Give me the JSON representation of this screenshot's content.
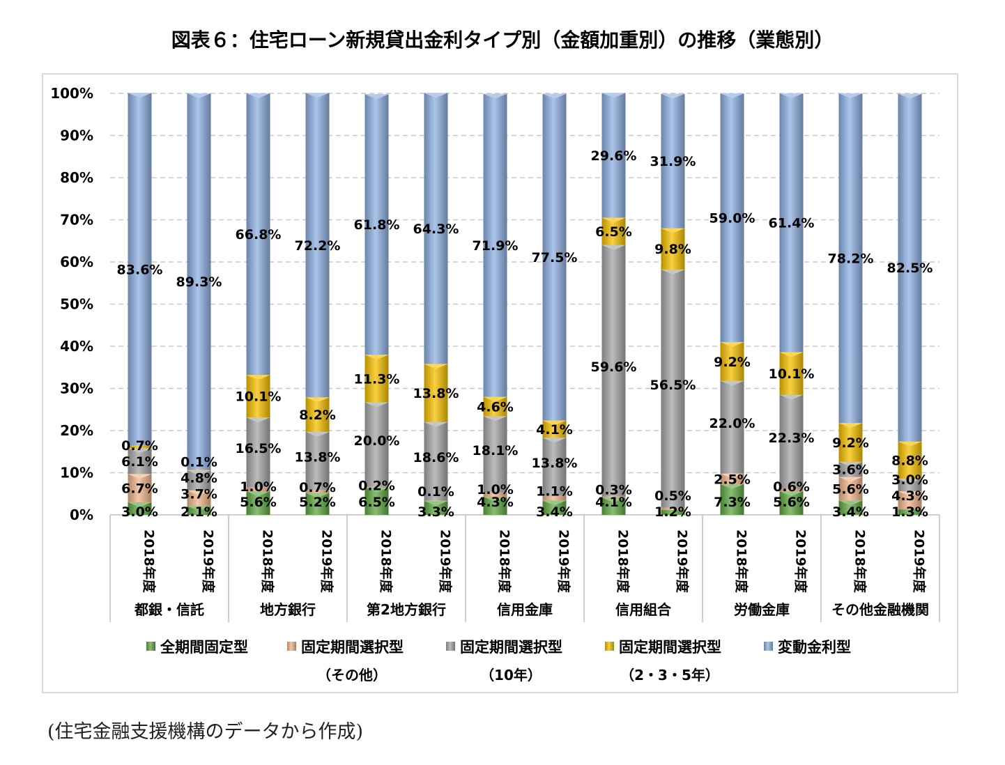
{
  "title": "図表６：住宅ローン新規貸出金利タイプ別（金額加重別）の推移（業態別）",
  "source": "(住宅金融支援機構のデータから作成)",
  "colors": {
    "全期間固定型": "#5fa843",
    "固定期間選択型_その他": "#f0b48c",
    "固定期間選択型_10年": "#a6a6a6",
    "固定期間選択型_235年": "#f5c000",
    "変動金利型": "#8fb0e2"
  },
  "chart_data": {
    "type": "bar",
    "stacked": true,
    "ylim": [
      0,
      100
    ],
    "yticks": [
      "0%",
      "10%",
      "20%",
      "30%",
      "40%",
      "50%",
      "60%",
      "70%",
      "80%",
      "90%",
      "100%"
    ],
    "grid": true,
    "legend_position": "bottom",
    "groups": [
      "都銀・信託",
      "地方銀行",
      "第2地方銀行",
      "信用金庫",
      "信用組合",
      "労働金庫",
      "その他金融機関"
    ],
    "categories": [
      "2018年度",
      "2019年度",
      "2018年度",
      "2019年度",
      "2018年度",
      "2019年度",
      "2018年度",
      "2019年度",
      "2018年度",
      "2019年度",
      "2018年度",
      "2019年度",
      "2018年度",
      "2019年度"
    ],
    "series": [
      {
        "name": "全期間固定型",
        "legend_lines": [
          "全期間固定型"
        ],
        "values": [
          3.0,
          2.1,
          5.6,
          5.2,
          6.5,
          3.3,
          4.3,
          3.4,
          4.1,
          1.2,
          7.3,
          5.6,
          3.4,
          1.3
        ],
        "labels": [
          "3.0%",
          "2.1%",
          "5.6%",
          "5.2%",
          "6.5%",
          "3.3%",
          "4.3%",
          "3.4%",
          "4.1%",
          "1.2%",
          "7.3%",
          "5.6%",
          "3.4%",
          "1.3%"
        ]
      },
      {
        "name": "固定期間選択型（その他）",
        "legend_lines": [
          "固定期間選択型",
          "（その他）"
        ],
        "values": [
          6.7,
          3.7,
          1.0,
          0.7,
          0.2,
          0.1,
          1.0,
          1.1,
          0.3,
          0.5,
          2.5,
          0.6,
          5.6,
          4.3
        ],
        "labels": [
          "6.7%",
          "3.7%",
          "1.0%",
          "0.7%",
          "0.2%",
          "0.1%",
          "1.0%",
          "1.1%",
          "0.3%",
          "0.5%",
          "2.5%",
          "0.6%",
          "5.6%",
          "4.3%"
        ]
      },
      {
        "name": "固定期間選択型（10年）",
        "legend_lines": [
          "固定期間選択型",
          "（10年）"
        ],
        "values": [
          6.1,
          4.8,
          16.5,
          13.8,
          20.0,
          18.6,
          18.1,
          13.8,
          59.6,
          56.5,
          22.0,
          22.3,
          3.6,
          3.0
        ],
        "labels": [
          "6.1%",
          "4.8%",
          "16.5%",
          "13.8%",
          "20.0%",
          "18.6%",
          "18.1%",
          "13.8%",
          "59.6%",
          "56.5%",
          "22.0%",
          "22.3%",
          "3.6%",
          "3.0%"
        ]
      },
      {
        "name": "固定期間選択型（2・3・5年）",
        "legend_lines": [
          "固定期間選択型",
          "（2・3・5年）"
        ],
        "values": [
          0.7,
          0.1,
          10.1,
          8.2,
          11.3,
          13.8,
          4.6,
          4.1,
          6.5,
          9.8,
          9.2,
          10.1,
          9.2,
          8.8
        ],
        "labels": [
          "0.7%",
          "0.1%",
          "10.1%",
          "8.2%",
          "11.3%",
          "13.8%",
          "4.6%",
          "4.1%",
          "6.5%",
          "9.8%",
          "9.2%",
          "10.1%",
          "9.2%",
          "8.8%"
        ]
      },
      {
        "name": "変動金利型",
        "legend_lines": [
          "変動金利型"
        ],
        "values": [
          83.6,
          89.3,
          66.8,
          72.2,
          61.8,
          64.3,
          71.9,
          77.5,
          29.6,
          31.9,
          59.0,
          61.4,
          78.2,
          82.5
        ],
        "labels": [
          "83.6%",
          "89.3%",
          "66.8%",
          "72.2%",
          "61.8%",
          "64.3%",
          "71.9%",
          "77.5%",
          "29.6%",
          "31.9%",
          "59.0%",
          "61.4%",
          "78.2%",
          "82.5%"
        ]
      }
    ]
  }
}
